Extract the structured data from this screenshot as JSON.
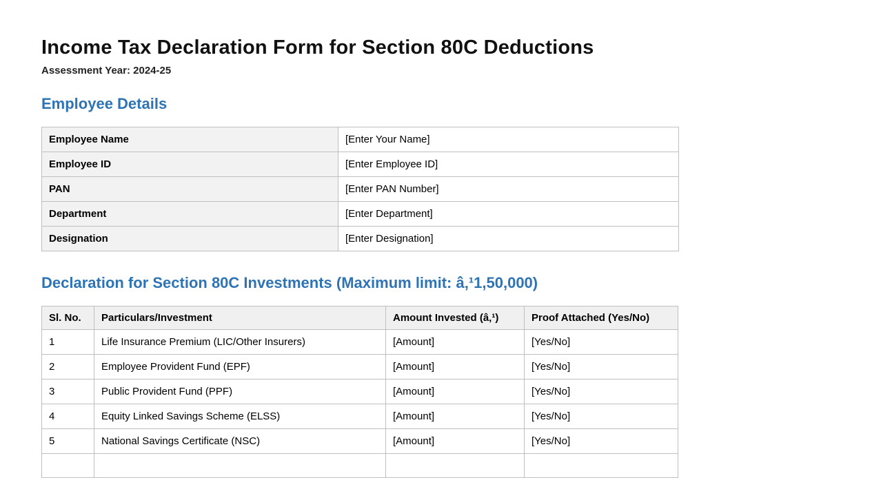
{
  "page": {
    "title": "Income Tax Declaration Form for Section 80C Deductions",
    "subtitle": "Assessment Year: 2024-25"
  },
  "colors": {
    "heading_accent": "#2E74B5",
    "table_header_bg": "#f0f0f0",
    "label_cell_bg": "#f2f2f2",
    "table_border": "#bfbfbf",
    "body_text": "#000000"
  },
  "employee_details": {
    "heading": "Employee Details",
    "rows": [
      {
        "label": "Employee Name",
        "value": "[Enter Your Name]"
      },
      {
        "label": "Employee ID",
        "value": "[Enter Employee ID]"
      },
      {
        "label": "PAN",
        "value": "[Enter PAN Number]"
      },
      {
        "label": "Department",
        "value": "[Enter Department]"
      },
      {
        "label": "Designation",
        "value": "[Enter Designation]"
      }
    ]
  },
  "declaration": {
    "heading": "Declaration for Section 80C Investments (Maximum limit: â‚¹1,50,000)",
    "columns": {
      "sl_no": "Sl. No.",
      "particulars": "Particulars/Investment",
      "amount": "Amount Invested (â‚¹)",
      "proof": "Proof Attached (Yes/No)"
    },
    "rows": [
      {
        "sl_no": "1",
        "particulars": "Life Insurance Premium (LIC/Other Insurers)",
        "amount": "[Amount]",
        "proof": "[Yes/No]"
      },
      {
        "sl_no": "2",
        "particulars": "Employee Provident Fund (EPF)",
        "amount": "[Amount]",
        "proof": "[Yes/No]"
      },
      {
        "sl_no": "3",
        "particulars": "Public Provident Fund (PPF)",
        "amount": "[Amount]",
        "proof": "[Yes/No]"
      },
      {
        "sl_no": "4",
        "particulars": "Equity Linked Savings Scheme (ELSS)",
        "amount": "[Amount]",
        "proof": "[Yes/No]"
      },
      {
        "sl_no": "5",
        "particulars": "National Savings Certificate (NSC)",
        "amount": "[Amount]",
        "proof": "[Yes/No]"
      }
    ]
  }
}
